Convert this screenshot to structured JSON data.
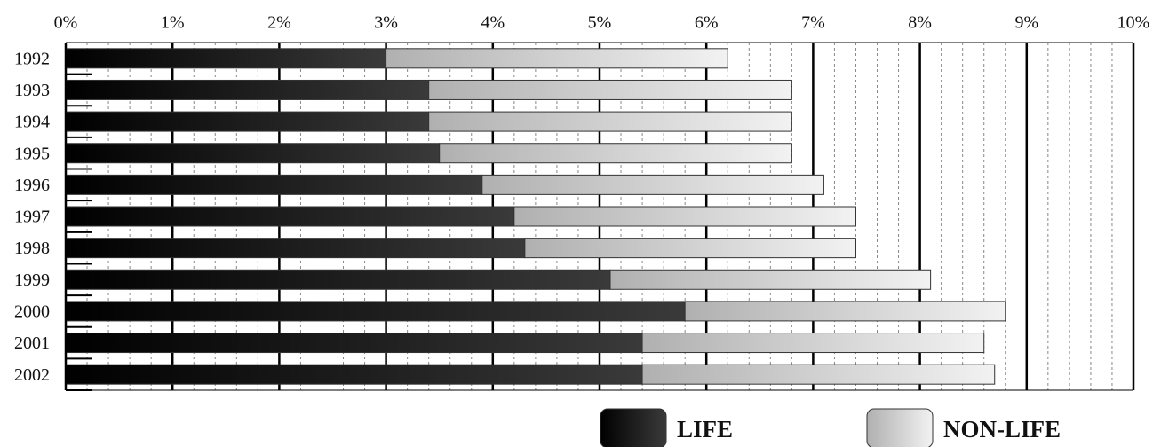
{
  "chart_data": {
    "type": "stacked-barh",
    "categories": [
      "1992",
      "1993",
      "1994",
      "1995",
      "1996",
      "1997",
      "1998",
      "1999",
      "2000",
      "2001",
      "2002"
    ],
    "series": [
      {
        "name": "LIFE",
        "color": "#3a3a3a",
        "values": [
          3.0,
          3.4,
          3.4,
          3.5,
          3.9,
          4.2,
          4.3,
          5.1,
          5.8,
          5.4,
          5.4
        ]
      },
      {
        "name": "NON-LIFE",
        "color": "#b0b0b0",
        "values": [
          3.2,
          3.4,
          3.4,
          3.3,
          3.2,
          3.2,
          3.1,
          3.0,
          3.0,
          3.2,
          3.3
        ]
      }
    ],
    "xlim": [
      0,
      10
    ],
    "xticks": [
      {
        "value": 0,
        "label": "0%"
      },
      {
        "value": 1,
        "label": "1%"
      },
      {
        "value": 2,
        "label": "2%"
      },
      {
        "value": 3,
        "label": "3%"
      },
      {
        "value": 4,
        "label": "4%"
      },
      {
        "value": 5,
        "label": "5%"
      },
      {
        "value": 6,
        "label": "6%"
      },
      {
        "value": 7,
        "label": "7%"
      },
      {
        "value": 8,
        "label": "8%"
      },
      {
        "value": 9,
        "label": "9%"
      },
      {
        "value": 10,
        "label": "10%"
      }
    ],
    "grid": true,
    "minor_grid_divisions": 5,
    "legend": "bottom-right"
  }
}
